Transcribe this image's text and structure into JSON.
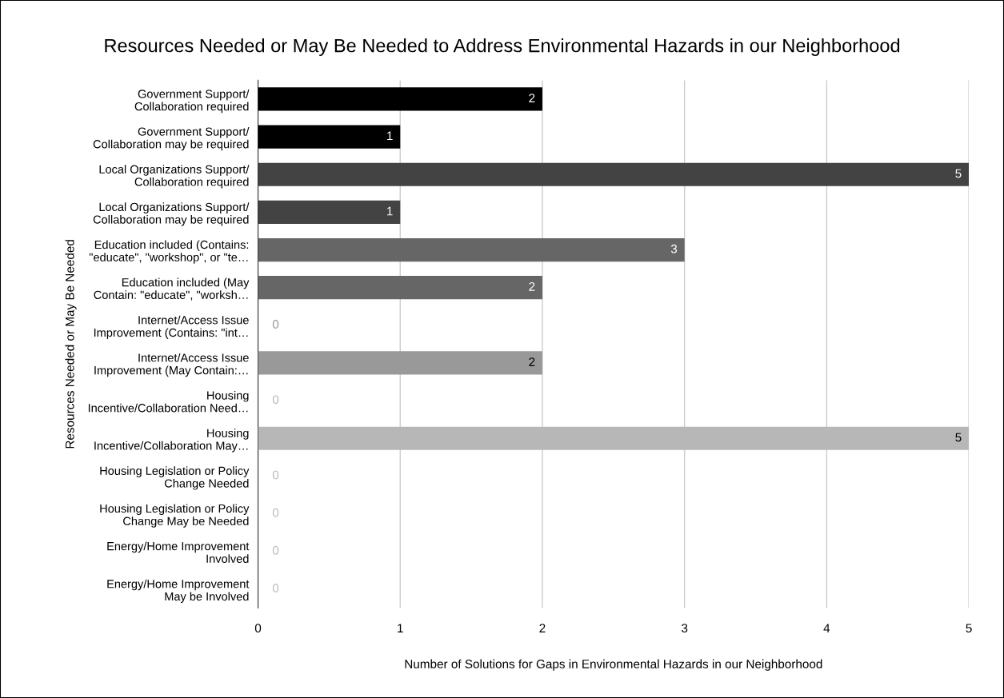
{
  "chart_data": {
    "type": "bar",
    "orientation": "horizontal",
    "title": "Resources Needed or May Be Needed to Address Environmental Hazards in our Neighborhood",
    "xlabel": "Number of Solutions for Gaps in Environmental Hazards in our Neighborhood",
    "ylabel": "Resources Needed or May Be Needed",
    "categories": [
      "Government Support/\nCollaboration required",
      "Government Support/\nCollaboration may be required",
      "Local Organizations Support/\nCollaboration required",
      "Local Organizations Support/\nCollaboration may be required",
      "Education included (Contains:\n\"educate\", \"workshop\", or \"te…",
      "Education included (May\nContain: \"educate\", \"worksh…",
      "Internet/Access Issue\nImprovement (Contains: \"int…",
      "Internet/Access Issue\nImprovement (May Contain:…",
      "Housing\nIncentive/Collaboration Need…",
      "Housing\nIncentive/Collaboration May…",
      "Housing Legislation or Policy\nChange Needed",
      "Housing Legislation or Policy\nChange May be Needed",
      "Energy/Home Improvement\nInvolved",
      "Energy/Home Improvement\nMay be Involved"
    ],
    "values": [
      2,
      1,
      5,
      1,
      3,
      2,
      0,
      2,
      0,
      5,
      0,
      0,
      0,
      0
    ],
    "colors": [
      "#000000",
      "#000000",
      "#434343",
      "#434343",
      "#666666",
      "#666666",
      "#999999",
      "#999999",
      "#b7b7b7",
      "#b7b7b7",
      "#cccccc",
      "#cccccc",
      "#d9d9d9",
      "#d9d9d9"
    ],
    "xlim": [
      0,
      5
    ],
    "xticks": [
      0,
      1,
      2,
      3,
      4,
      5
    ],
    "grid": "x",
    "legend": false,
    "data_labels": true
  }
}
